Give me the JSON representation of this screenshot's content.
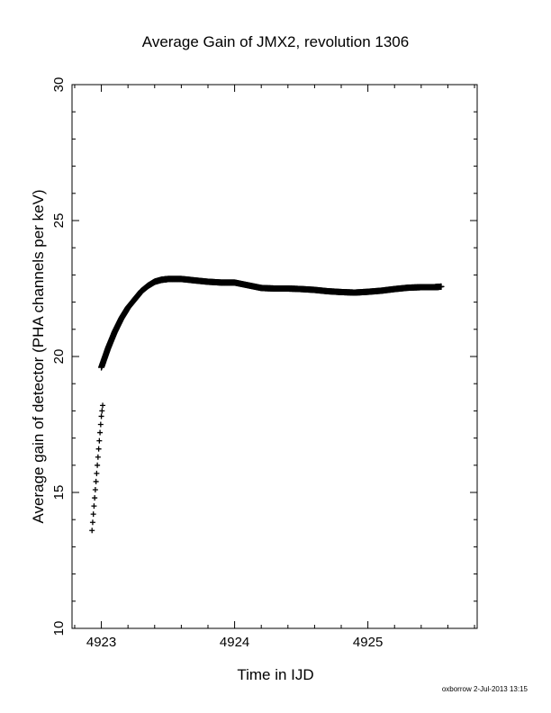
{
  "chart_data": {
    "type": "scatter",
    "title": "Average Gain of JMX2, revolution 1306",
    "xlabel": "Time in IJD",
    "ylabel": "Average gain of detector (PHA channels per keV)",
    "xlim": [
      4922.78,
      4925.82
    ],
    "ylim": [
      10,
      30
    ],
    "xticks": [
      "4923",
      "4924",
      "4925"
    ],
    "yticks": [
      "10",
      "15",
      "20",
      "25",
      "30"
    ],
    "grid": false,
    "marker": "plus",
    "series": [
      {
        "segment": "initial",
        "x": [
          4922.93,
          4922.935,
          4922.94,
          4922.945,
          4922.95,
          4922.955,
          4922.96,
          4922.965,
          4922.97,
          4922.975,
          4922.98,
          4922.985,
          4922.99,
          4922.995,
          4923.0,
          4923.005,
          4923.01
        ],
        "y": [
          13.6,
          13.9,
          14.2,
          14.5,
          14.8,
          15.1,
          15.4,
          15.7,
          16.0,
          16.3,
          16.6,
          16.9,
          17.2,
          17.5,
          17.8,
          18.0,
          18.2
        ]
      },
      {
        "segment": "main",
        "x": [
          4923.0,
          4923.05,
          4923.1,
          4923.15,
          4923.2,
          4923.25,
          4923.3,
          4923.35,
          4923.4,
          4923.45,
          4923.5,
          4923.6,
          4923.7,
          4923.8,
          4923.9,
          4924.0,
          4924.1,
          4924.2,
          4924.3,
          4924.4,
          4924.5,
          4924.6,
          4924.7,
          4924.8,
          4924.9,
          4925.0,
          4925.1,
          4925.2,
          4925.3,
          4925.4,
          4925.5,
          4925.55
        ],
        "y": [
          19.6,
          20.3,
          20.9,
          21.4,
          21.8,
          22.1,
          22.4,
          22.6,
          22.75,
          22.82,
          22.85,
          22.85,
          22.8,
          22.75,
          22.72,
          22.72,
          22.62,
          22.52,
          22.5,
          22.5,
          22.48,
          22.45,
          22.4,
          22.37,
          22.35,
          22.38,
          22.42,
          22.48,
          22.53,
          22.55,
          22.55,
          22.57
        ]
      }
    ]
  },
  "footer": "oxborrow  2-Jul-2013 13:15"
}
